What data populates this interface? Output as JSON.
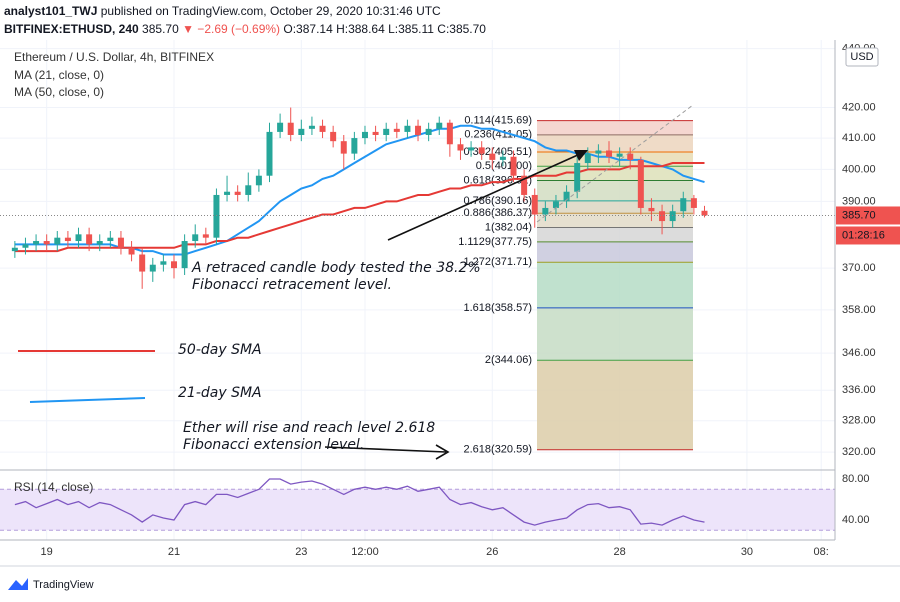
{
  "header": {
    "author": "analyst101_TWJ",
    "published": "published on TradingView.com, October 29, 2020 10:31:46 UTC",
    "symbol": "BITFINEX:ETHUSD, 240",
    "last": "385.70",
    "change": "▼ −2.69 (−0.69%)",
    "ohlc": "O:387.14 H:388.64 L:385.11 C:385.70",
    "currency": "USD",
    "footer": "TradingView"
  },
  "chart_data": [
    {
      "type": "candlestick",
      "title": "Ethereum / U.S. Dollar, 4h, BITFINEX",
      "up_color": "#26a69a",
      "down_color": "#ef5350",
      "log_scale": true,
      "grid": true,
      "ylim": [
        316,
        443
      ],
      "xlim": [
        -1.4,
        77.3
      ],
      "yticks": [
        {
          "value": 440,
          "label": "440.00"
        },
        {
          "value": 420,
          "label": "420.00"
        },
        {
          "value": 410,
          "label": "410.00"
        },
        {
          "value": 400,
          "label": "400.00"
        },
        {
          "value": 390,
          "label": "390.00"
        },
        {
          "value": 370,
          "label": "370.00"
        },
        {
          "value": 358,
          "label": "358.00"
        },
        {
          "value": 346,
          "label": "346.00"
        },
        {
          "value": 336,
          "label": "336.00"
        },
        {
          "value": 328,
          "label": "328.00"
        },
        {
          "value": 320,
          "label": "320.00"
        }
      ],
      "xticks": [
        {
          "value": 3,
          "label": "19"
        },
        {
          "value": 15,
          "label": "21"
        },
        {
          "value": 27,
          "label": "23"
        },
        {
          "value": 33,
          "label": "12:00"
        },
        {
          "value": 45,
          "label": "26"
        },
        {
          "value": 57,
          "label": "28"
        },
        {
          "value": 69,
          "label": "30"
        },
        {
          "value": 76,
          "label": "08:"
        }
      ],
      "open": [
        375,
        376,
        377,
        378,
        377,
        379,
        378,
        380,
        377,
        378,
        379,
        376,
        374,
        369,
        371,
        372,
        370,
        378,
        380,
        379,
        392,
        393,
        392,
        395,
        398,
        412,
        415,
        411,
        413,
        414,
        412,
        409,
        405,
        410,
        412,
        411,
        413,
        412,
        414,
        411,
        413,
        415,
        408,
        406,
        407,
        405,
        403,
        404,
        398,
        392,
        386,
        388,
        390,
        393,
        402,
        405,
        406,
        404,
        405,
        403,
        388,
        387,
        384,
        387,
        391,
        387.14
      ],
      "high": [
        378,
        379,
        380,
        380,
        381,
        381,
        382,
        382,
        380,
        381,
        381,
        378,
        376,
        373,
        374,
        374,
        380,
        383,
        382,
        394,
        398,
        395,
        399,
        400,
        415,
        418,
        420,
        416,
        417,
        416,
        414,
        411,
        412,
        414,
        414,
        415,
        415,
        416,
        416,
        415,
        417,
        416,
        410,
        409,
        409,
        407,
        406,
        406,
        400,
        394,
        390,
        392,
        395,
        404,
        407,
        408,
        409,
        407,
        407,
        404,
        391,
        389,
        389,
        393,
        392,
        388.64
      ],
      "low": [
        373,
        374,
        375,
        375,
        375,
        376,
        376,
        375,
        375,
        376,
        374,
        372,
        364,
        366,
        369,
        367,
        368,
        376,
        377,
        377,
        390,
        390,
        390,
        393,
        396,
        410,
        409,
        409,
        411,
        410,
        407,
        400,
        403,
        408,
        409,
        409,
        410,
        410,
        409,
        409,
        411,
        404,
        403,
        404,
        403,
        400,
        401,
        396,
        390,
        382,
        384,
        386,
        388,
        391,
        400,
        402,
        402,
        401,
        400,
        386,
        384,
        380,
        382,
        385,
        386,
        385.11
      ],
      "close": [
        376,
        377,
        378,
        377,
        379,
        378,
        380,
        377,
        378,
        379,
        376,
        374,
        369,
        371,
        372,
        370,
        378,
        380,
        379,
        392,
        393,
        392,
        395,
        398,
        412,
        415,
        411,
        413,
        414,
        412,
        409,
        405,
        410,
        412,
        411,
        413,
        412,
        414,
        411,
        413,
        415,
        408,
        406,
        407,
        405,
        403,
        404,
        398,
        392,
        386,
        388,
        390,
        393,
        402,
        405,
        406,
        404,
        405,
        403,
        388,
        387,
        384,
        387,
        391,
        388,
        385.7
      ],
      "last_price": {
        "value": 385.7,
        "label": "385.70"
      },
      "countdown": "01:28:16",
      "series": [
        {
          "name": "MA (21, close, 0)",
          "color": "#2196f3",
          "values": [
            377,
            377,
            377,
            377,
            377,
            377,
            377,
            377,
            377,
            377,
            376,
            376,
            375,
            375,
            374,
            374,
            374,
            375,
            376,
            377,
            378,
            380,
            382,
            384,
            387,
            390,
            392,
            394,
            395,
            397,
            398,
            400,
            402,
            404,
            406,
            408,
            409,
            410,
            411,
            412,
            413,
            413,
            414,
            414,
            413,
            413,
            412,
            411,
            410,
            409,
            407,
            406,
            406,
            405,
            405,
            404,
            404,
            403,
            403,
            403,
            402,
            401,
            400,
            398,
            397,
            396
          ]
        },
        {
          "name": "MA (50, close, 0)",
          "color": "#e53935",
          "values": [
            375,
            375,
            375,
            375,
            375,
            376,
            376,
            376,
            376,
            376,
            376,
            376,
            376,
            376,
            376,
            376,
            377,
            377,
            377,
            378,
            378,
            379,
            379,
            380,
            381,
            382,
            383,
            384,
            385,
            386,
            386,
            387,
            388,
            388,
            389,
            390,
            390,
            391,
            392,
            392,
            393,
            394,
            394,
            395,
            395,
            396,
            396,
            397,
            397,
            398,
            398,
            398,
            399,
            399,
            400,
            400,
            400,
            400,
            401,
            401,
            401,
            401,
            402,
            402,
            402,
            402
          ]
        }
      ],
      "fib_levels": [
        {
          "value": 415.69,
          "label": "0.114(415.69)",
          "color": "#c62828",
          "fill": "#f3cfc8"
        },
        {
          "value": 411.05,
          "label": "0.236(411.05)",
          "color": "#8d6e63",
          "fill": "#ecd5bd"
        },
        {
          "value": 405.51,
          "label": "0.382(405.51)",
          "color": "#ef6c00",
          "fill": "#e8dcb4"
        },
        {
          "value": 401.0,
          "label": "0.5(401.00)",
          "color": "#43a047",
          "fill": "#dde0b8"
        },
        {
          "value": 396.51,
          "label": "0.618(396.51)",
          "color": "#2e7d32",
          "fill": "#d2ddc2"
        },
        {
          "value": 390.16,
          "label": "0.786(390.16)",
          "color": "#26a69a",
          "fill": "#dcd6c2"
        },
        {
          "value": 386.37,
          "label": "0.886(386.37)",
          "color": "#bf8f3f",
          "fill": "#e2dac8"
        },
        {
          "value": 382.04,
          "label": "1(382.04)",
          "color": "#757575",
          "fill": "#d6d6d6"
        },
        {
          "value": 377.75,
          "label": "1.1129(377.75)",
          "color": "#558b2f",
          "fill": "#c8c8dc"
        },
        {
          "value": 371.71,
          "label": "1.272(371.71)",
          "color": "#9e9d24",
          "fill": "#b5dcc6"
        },
        {
          "value": 358.57,
          "label": "1.618(358.57)",
          "color": "#1e4fc2",
          "fill": "#c6dcc4"
        },
        {
          "value": 344.06,
          "label": "2(344.06)",
          "color": "#43a047",
          "fill": "#dccca8"
        },
        {
          "value": 320.59,
          "label": "2.618(320.59)",
          "color": "#c62828",
          "fill": "none"
        }
      ],
      "annotations": [
        {
          "text": "A retraced candle body tested the 38.2%",
          "color": "#111111"
        },
        {
          "text": "Fibonacci retracement level.",
          "color": "#111111"
        },
        {
          "text": "50-day SMA",
          "color": "#e53935"
        },
        {
          "text": "21-day SMA",
          "color": "#2196f3"
        },
        {
          "text": "Ether will rise and reach level 2.618",
          "color": "#111111"
        },
        {
          "text": "Fibonacci extension level.",
          "color": "#111111"
        }
      ]
    },
    {
      "type": "line",
      "title": "RSI (14, close)",
      "color": "#7e57c2",
      "band": [
        30,
        70
      ],
      "band_color": "#ede4fa",
      "ylim": [
        20.5,
        83.9
      ],
      "yticks": [
        {
          "value": 80,
          "label": "80.00"
        },
        {
          "value": 40,
          "label": "40.00"
        }
      ],
      "values": [
        55,
        58,
        52,
        56,
        60,
        55,
        58,
        52,
        57,
        55,
        50,
        45,
        38,
        45,
        42,
        40,
        55,
        58,
        55,
        65,
        65,
        62,
        66,
        70,
        80,
        80,
        75,
        77,
        78,
        75,
        70,
        65,
        70,
        72,
        70,
        72,
        70,
        73,
        68,
        70,
        72,
        60,
        55,
        57,
        53,
        50,
        52,
        45,
        38,
        35,
        38,
        40,
        42,
        50,
        55,
        56,
        52,
        53,
        50,
        36,
        37,
        35,
        40,
        44,
        40,
        38
      ]
    }
  ]
}
